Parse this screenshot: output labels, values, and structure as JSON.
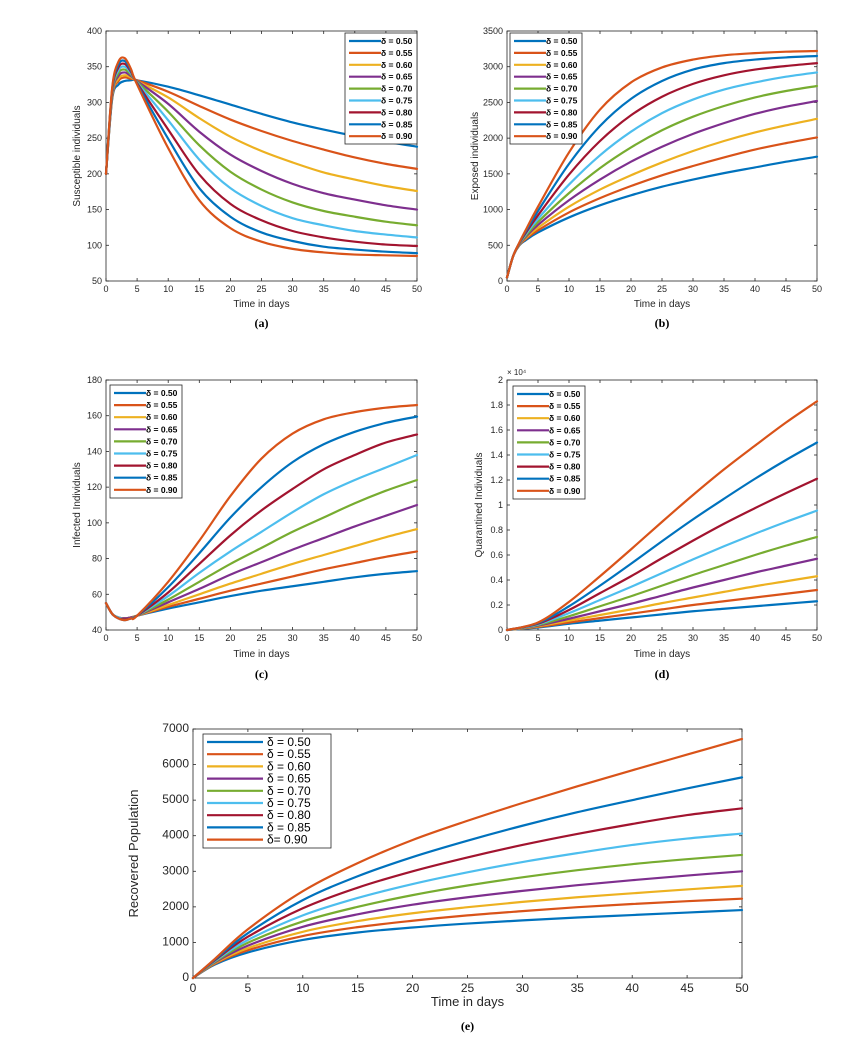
{
  "colors": [
    "#0072BD",
    "#D95319",
    "#EDB120",
    "#7E2F8E",
    "#77AC30",
    "#4DBEEE",
    "#A2142F",
    "#0072BD",
    "#D95319"
  ],
  "chart_data": [
    {
      "id": "a",
      "type": "line",
      "caption": "(a)",
      "xlabel": "Time in days",
      "ylabel": "Susceptible individuals",
      "xlim": [
        0,
        50
      ],
      "ylim": [
        50,
        400
      ],
      "xticks": [
        0,
        5,
        10,
        15,
        20,
        25,
        30,
        35,
        40,
        45,
        50
      ],
      "yticks": [
        50,
        100,
        150,
        200,
        250,
        300,
        350,
        400
      ],
      "ytick_labels": [
        "50",
        "100",
        "150",
        "200",
        "250",
        "300",
        "350",
        "400"
      ],
      "multiplier": "",
      "legend_position": "top-right",
      "x": [
        0,
        1,
        2,
        3,
        4,
        5,
        10,
        15,
        20,
        25,
        30,
        35,
        40,
        45,
        50
      ],
      "series": [
        {
          "name": "δ = 0.50",
          "values": [
            200,
            305,
            325,
            330,
            331,
            331,
            322,
            310,
            297,
            284,
            272,
            262,
            253,
            245,
            238
          ]
        },
        {
          "name": "δ = 0.55",
          "values": [
            200,
            307,
            330,
            335,
            333,
            331,
            315,
            295,
            276,
            260,
            246,
            234,
            223,
            214,
            207
          ]
        },
        {
          "name": "δ = 0.60",
          "values": [
            200,
            309,
            333,
            338,
            335,
            330,
            307,
            278,
            252,
            232,
            216,
            202,
            192,
            183,
            176
          ]
        },
        {
          "name": "δ = 0.65",
          "values": [
            200,
            311,
            337,
            342,
            337,
            330,
            298,
            259,
            227,
            204,
            186,
            173,
            164,
            156,
            150
          ]
        },
        {
          "name": "δ = 0.70",
          "values": [
            200,
            313,
            341,
            346,
            339,
            329,
            287,
            240,
            203,
            178,
            160,
            148,
            140,
            133,
            128
          ]
        },
        {
          "name": "δ = 0.75",
          "values": [
            200,
            315,
            345,
            350,
            341,
            328,
            275,
            220,
            180,
            155,
            138,
            128,
            120,
            115,
            111
          ]
        },
        {
          "name": "δ = 0.80",
          "values": [
            200,
            317,
            349,
            354,
            343,
            327,
            262,
            199,
            158,
            135,
            120,
            111,
            105,
            101,
            99
          ]
        },
        {
          "name": "δ = 0.85",
          "values": [
            200,
            319,
            353,
            358,
            345,
            326,
            249,
            180,
            140,
            118,
            106,
            98,
            94,
            91,
            89
          ]
        },
        {
          "name": "δ = 0.90",
          "values": [
            200,
            321,
            357,
            362,
            347,
            325,
            236,
            163,
            124,
            105,
            95,
            90,
            87,
            86,
            85
          ]
        }
      ]
    },
    {
      "id": "b",
      "type": "line",
      "caption": "(b)",
      "xlabel": "Time in days",
      "ylabel": "Exposed individuals",
      "xlim": [
        0,
        50
      ],
      "ylim": [
        0,
        3500
      ],
      "xticks": [
        0,
        5,
        10,
        15,
        20,
        25,
        30,
        35,
        40,
        45,
        50
      ],
      "yticks": [
        0,
        500,
        1000,
        1500,
        2000,
        2500,
        3000,
        3500
      ],
      "ytick_labels": [
        "0",
        "500",
        "1000",
        "1500",
        "2000",
        "2500",
        "3000",
        "3500"
      ],
      "multiplier": "",
      "legend_position": "top-left",
      "x": [
        0,
        1,
        2,
        3,
        5,
        10,
        15,
        20,
        25,
        30,
        35,
        40,
        45,
        50
      ],
      "series": [
        {
          "name": "δ = 0.50",
          "values": [
            50,
            350,
            500,
            570,
            680,
            890,
            1060,
            1200,
            1320,
            1420,
            1510,
            1590,
            1670,
            1740
          ]
        },
        {
          "name": "δ = 0.55",
          "values": [
            50,
            350,
            505,
            585,
            710,
            960,
            1160,
            1330,
            1480,
            1610,
            1730,
            1840,
            1930,
            2010
          ]
        },
        {
          "name": "δ = 0.60",
          "values": [
            50,
            350,
            510,
            600,
            745,
            1040,
            1280,
            1480,
            1660,
            1820,
            1960,
            2080,
            2180,
            2270
          ]
        },
        {
          "name": "δ = 0.65",
          "values": [
            50,
            350,
            515,
            615,
            785,
            1130,
            1420,
            1670,
            1880,
            2060,
            2210,
            2340,
            2440,
            2520
          ]
        },
        {
          "name": "δ = 0.70",
          "values": [
            50,
            350,
            520,
            630,
            825,
            1230,
            1580,
            1870,
            2110,
            2300,
            2450,
            2570,
            2660,
            2730
          ]
        },
        {
          "name": "δ = 0.75",
          "values": [
            50,
            350,
            525,
            650,
            870,
            1350,
            1760,
            2090,
            2350,
            2540,
            2680,
            2780,
            2860,
            2920
          ]
        },
        {
          "name": "δ = 0.80",
          "values": [
            50,
            350,
            530,
            670,
            920,
            1490,
            1960,
            2320,
            2580,
            2760,
            2880,
            2960,
            3010,
            3050
          ]
        },
        {
          "name": "δ = 0.85",
          "values": [
            50,
            350,
            535,
            690,
            980,
            1640,
            2170,
            2550,
            2800,
            2960,
            3050,
            3100,
            3130,
            3150
          ]
        },
        {
          "name": "δ = 0.90",
          "values": [
            50,
            350,
            540,
            710,
            1040,
            1800,
            2400,
            2780,
            2990,
            3100,
            3160,
            3190,
            3210,
            3220
          ]
        }
      ]
    },
    {
      "id": "c",
      "type": "line",
      "caption": "(c)",
      "xlabel": "Time in days",
      "ylabel": "Infected Individuals",
      "xlim": [
        0,
        50
      ],
      "ylim": [
        40,
        180
      ],
      "xticks": [
        0,
        5,
        10,
        15,
        20,
        25,
        30,
        35,
        40,
        45,
        50
      ],
      "yticks": [
        40,
        60,
        80,
        100,
        120,
        140,
        160,
        180
      ],
      "ytick_labels": [
        "40",
        "60",
        "80",
        "100",
        "120",
        "140",
        "160",
        "180"
      ],
      "multiplier": "",
      "legend_position": "top-left",
      "x": [
        0,
        1,
        2,
        3,
        4,
        5,
        10,
        15,
        20,
        25,
        30,
        35,
        40,
        45,
        50
      ],
      "series": [
        {
          "name": "δ = 0.50",
          "values": [
            55,
            49,
            47,
            46.5,
            47,
            48,
            52,
            55.5,
            59,
            62,
            64.5,
            67,
            69.5,
            71.5,
            73
          ]
        },
        {
          "name": "δ = 0.55",
          "values": [
            55,
            49,
            47,
            46.5,
            47,
            48,
            53,
            57.5,
            62,
            66,
            70,
            74,
            77.5,
            81,
            84
          ]
        },
        {
          "name": "δ = 0.60",
          "values": [
            55,
            49,
            47,
            46.5,
            47,
            48,
            54,
            60,
            66,
            71.5,
            77,
            82,
            87,
            92,
            96.5
          ]
        },
        {
          "name": "δ = 0.65",
          "values": [
            55,
            49,
            47,
            46.5,
            47,
            48,
            55.5,
            63,
            71,
            78,
            85,
            91.5,
            98,
            104,
            110
          ]
        },
        {
          "name": "δ = 0.70",
          "values": [
            55,
            49,
            47,
            46,
            46.5,
            48,
            57,
            67,
            77,
            86,
            95,
            103,
            111,
            118,
            124
          ]
        },
        {
          "name": "δ = 0.75",
          "values": [
            55,
            49,
            47,
            46,
            46.5,
            48,
            59,
            72,
            84,
            95,
            106,
            116,
            124,
            131,
            138
          ]
        },
        {
          "name": "δ = 0.80",
          "values": [
            55,
            49,
            46.5,
            46,
            46.5,
            48,
            61,
            77,
            93,
            107,
            119,
            130,
            138,
            145,
            149.5
          ]
        },
        {
          "name": "δ = 0.85",
          "values": [
            55,
            49,
            46.5,
            45.5,
            46.5,
            48,
            64,
            83,
            103,
            120,
            134,
            144,
            151,
            156,
            159.5
          ]
        },
        {
          "name": "δ = 0.90",
          "values": [
            55,
            49,
            46.5,
            45.5,
            46.5,
            48,
            67,
            90,
            115,
            136,
            150,
            158,
            162,
            164.5,
            166
          ]
        }
      ]
    },
    {
      "id": "d",
      "type": "line",
      "caption": "(d)",
      "xlabel": "Time in days",
      "ylabel": "Quarantined Individuals",
      "xlim": [
        0,
        50
      ],
      "ylim": [
        0,
        2
      ],
      "xticks": [
        0,
        5,
        10,
        15,
        20,
        25,
        30,
        35,
        40,
        45,
        50
      ],
      "yticks": [
        0,
        0.2,
        0.4,
        0.6,
        0.8,
        1,
        1.2,
        1.4,
        1.6,
        1.8,
        2
      ],
      "ytick_labels": [
        "0",
        "0.2",
        "0.4",
        "0.6",
        "0.8",
        "1",
        "1.2",
        "1.4",
        "1.6",
        "1.8",
        "2"
      ],
      "multiplier": "× 10⁴",
      "legend_position": "top-left",
      "x": [
        0,
        5,
        10,
        15,
        20,
        25,
        30,
        35,
        40,
        45,
        50
      ],
      "series": [
        {
          "name": "δ = 0.50",
          "values": [
            0,
            0.02,
            0.05,
            0.075,
            0.1,
            0.125,
            0.15,
            0.17,
            0.19,
            0.21,
            0.23
          ]
        },
        {
          "name": "δ = 0.55",
          "values": [
            0,
            0.025,
            0.06,
            0.095,
            0.13,
            0.165,
            0.2,
            0.23,
            0.26,
            0.29,
            0.32
          ]
        },
        {
          "name": "δ = 0.60",
          "values": [
            0,
            0.03,
            0.075,
            0.12,
            0.165,
            0.215,
            0.26,
            0.305,
            0.35,
            0.39,
            0.43
          ]
        },
        {
          "name": "δ = 0.65",
          "values": [
            0,
            0.035,
            0.09,
            0.15,
            0.21,
            0.275,
            0.34,
            0.4,
            0.46,
            0.515,
            0.57
          ]
        },
        {
          "name": "δ = 0.70",
          "values": [
            0,
            0.04,
            0.11,
            0.19,
            0.27,
            0.355,
            0.44,
            0.52,
            0.6,
            0.675,
            0.745
          ]
        },
        {
          "name": "δ = 0.75",
          "values": [
            0,
            0.045,
            0.135,
            0.24,
            0.345,
            0.455,
            0.565,
            0.67,
            0.77,
            0.865,
            0.955
          ]
        },
        {
          "name": "δ = 0.80",
          "values": [
            0,
            0.05,
            0.16,
            0.295,
            0.43,
            0.575,
            0.715,
            0.85,
            0.975,
            1.095,
            1.21
          ]
        },
        {
          "name": "δ = 0.85",
          "values": [
            0,
            0.055,
            0.19,
            0.355,
            0.53,
            0.71,
            0.885,
            1.05,
            1.21,
            1.36,
            1.5
          ]
        },
        {
          "name": "δ = 0.90",
          "values": [
            0,
            0.06,
            0.225,
            0.43,
            0.645,
            0.865,
            1.08,
            1.285,
            1.475,
            1.66,
            1.83
          ]
        }
      ]
    },
    {
      "id": "e",
      "type": "line",
      "caption": "(e)",
      "xlabel": "Time in days",
      "ylabel": "Recovered Population",
      "xlim": [
        0,
        50
      ],
      "ylim": [
        0,
        7000
      ],
      "xticks": [
        0,
        5,
        10,
        15,
        20,
        25,
        30,
        35,
        40,
        45,
        50
      ],
      "yticks": [
        0,
        1000,
        2000,
        3000,
        4000,
        5000,
        6000,
        7000
      ],
      "ytick_labels": [
        "0",
        "1000",
        "2000",
        "3000",
        "4000",
        "5000",
        "6000",
        "7000"
      ],
      "multiplier": "",
      "legend_position": "top-left",
      "x": [
        0,
        2,
        5,
        10,
        15,
        20,
        25,
        30,
        35,
        40,
        45,
        50
      ],
      "series": [
        {
          "name": "δ = 0.50",
          "values": [
            0,
            380,
            720,
            1070,
            1280,
            1420,
            1530,
            1620,
            1700,
            1770,
            1840,
            1910
          ]
        },
        {
          "name": "δ = 0.55",
          "values": [
            0,
            400,
            780,
            1180,
            1430,
            1610,
            1760,
            1880,
            1990,
            2080,
            2160,
            2230
          ]
        },
        {
          "name": "δ = 0.60",
          "values": [
            0,
            420,
            840,
            1300,
            1600,
            1820,
            1990,
            2140,
            2270,
            2380,
            2490,
            2590
          ]
        },
        {
          "name": "δ = 0.65",
          "values": [
            0,
            440,
            910,
            1440,
            1790,
            2060,
            2270,
            2450,
            2610,
            2750,
            2880,
            3000
          ]
        },
        {
          "name": "δ = 0.70",
          "values": [
            0,
            460,
            990,
            1590,
            2000,
            2330,
            2600,
            2830,
            3030,
            3200,
            3340,
            3460
          ]
        },
        {
          "name": "δ = 0.75",
          "values": [
            0,
            480,
            1070,
            1760,
            2250,
            2640,
            2970,
            3260,
            3510,
            3740,
            3920,
            4060
          ]
        },
        {
          "name": "δ = 0.80",
          "values": [
            0,
            500,
            1160,
            1960,
            2540,
            3000,
            3390,
            3740,
            4050,
            4330,
            4580,
            4770
          ]
        },
        {
          "name": "δ = 0.85",
          "values": [
            0,
            520,
            1260,
            2190,
            2860,
            3400,
            3860,
            4280,
            4660,
            5000,
            5330,
            5640
          ]
        },
        {
          "name": "δ = 0.90",
          "values": [
            0,
            540,
            1370,
            2440,
            3230,
            3880,
            4420,
            4920,
            5390,
            5840,
            6280,
            6720
          ]
        }
      ]
    }
  ],
  "legend_e_labels": [
    "δ = 0.50",
    "δ = 0.55",
    "δ = 0.60",
    "δ = 0.65",
    "δ = 0.70",
    "δ = 0.75",
    "δ = 0.80",
    "δ = 0.85",
    "δ= 0.90"
  ]
}
